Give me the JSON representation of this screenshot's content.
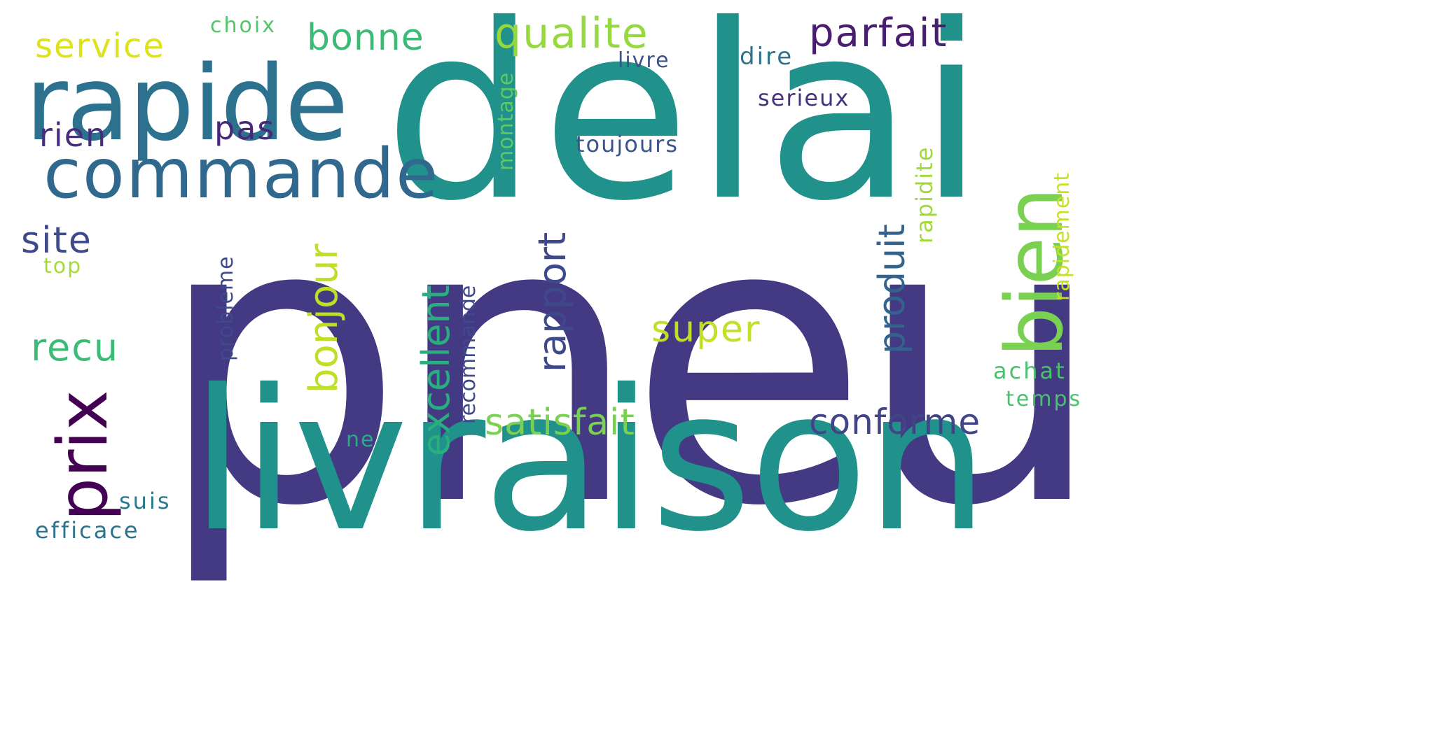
{
  "wordcloud": {
    "words": [
      {
        "text": "pneu",
        "color": "#443a83"
      },
      {
        "text": "delai",
        "color": "#21918c"
      },
      {
        "text": "livraison",
        "color": "#21918c"
      },
      {
        "text": "rapide",
        "color": "#2c728e"
      },
      {
        "text": "commande",
        "color": "#31688e"
      },
      {
        "text": "bien",
        "color": "#7ad151"
      },
      {
        "text": "prix",
        "color": "#440154"
      },
      {
        "text": "parfait",
        "color": "#481f70"
      },
      {
        "text": "qualite",
        "color": "#95d840"
      },
      {
        "text": "service",
        "color": "#dde318"
      },
      {
        "text": "bonne",
        "color": "#3bbb75"
      },
      {
        "text": "satisfait",
        "color": "#7ad151"
      },
      {
        "text": "conforme",
        "color": "#414487"
      },
      {
        "text": "super",
        "color": "#c2df23"
      },
      {
        "text": "excellent",
        "color": "#29af7f"
      },
      {
        "text": "rapport",
        "color": "#3e4989"
      },
      {
        "text": "produit",
        "color": "#33638d"
      },
      {
        "text": "bonjour",
        "color": "#bddf26"
      },
      {
        "text": "recu",
        "color": "#3bbb75"
      },
      {
        "text": "site",
        "color": "#3e4a89"
      },
      {
        "text": "rien",
        "color": "#472d7b"
      },
      {
        "text": "pas",
        "color": "#482878"
      },
      {
        "text": "toujours",
        "color": "#3a548c"
      },
      {
        "text": "serieux",
        "color": "#46327e"
      },
      {
        "text": "dire",
        "color": "#2c728e"
      },
      {
        "text": "livre",
        "color": "#3b528b"
      },
      {
        "text": "choix",
        "color": "#52c569"
      },
      {
        "text": "montage",
        "color": "#5ec962"
      },
      {
        "text": "rapidite",
        "color": "#a0da39"
      },
      {
        "text": "rapidement",
        "color": "#c8e020"
      },
      {
        "text": "achat",
        "color": "#4ac16d"
      },
      {
        "text": "temps",
        "color": "#4ac16d"
      },
      {
        "text": "recommande",
        "color": "#3e4a89"
      },
      {
        "text": "probleme",
        "color": "#3e4a89"
      },
      {
        "text": "top",
        "color": "#a5db36"
      },
      {
        "text": "ne",
        "color": "#26ad81"
      },
      {
        "text": "suis",
        "color": "#297b8e"
      },
      {
        "text": "efficace",
        "color": "#2c728e"
      }
    ]
  }
}
